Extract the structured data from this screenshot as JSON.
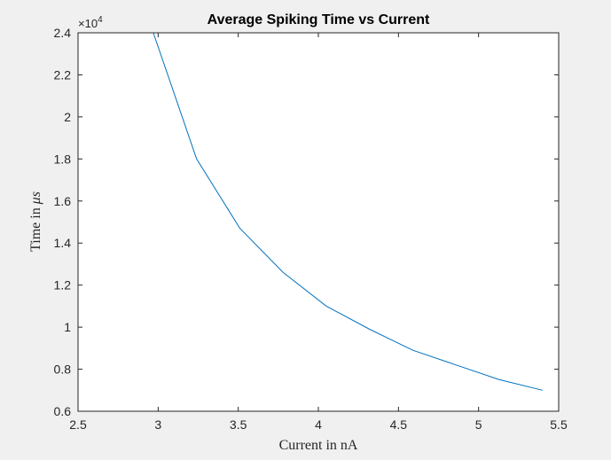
{
  "chart_data": {
    "type": "line",
    "title": "Average Spiking Time vs Current",
    "xlabel": "Current in nA",
    "ylabel_prefix": "Time in ",
    "ylabel_unit": "μs",
    "y_exponent_base": "×10",
    "y_exponent_power": "4",
    "xlim": [
      2.5,
      5.5
    ],
    "ylim": [
      0.6,
      2.4
    ],
    "x_ticks": [
      2.5,
      3,
      3.5,
      4,
      4.5,
      5,
      5.5
    ],
    "x_tick_labels": [
      "2.5",
      "3",
      "3.5",
      "4",
      "4.5",
      "5",
      "5.5"
    ],
    "y_ticks": [
      0.6,
      0.8,
      1,
      1.2,
      1.4,
      1.6,
      1.8,
      2,
      2.2,
      2.4
    ],
    "y_tick_labels": [
      "0.6",
      "0.8",
      "1",
      "1.2",
      "1.4",
      "1.6",
      "1.8",
      "2",
      "2.2",
      "2.4"
    ],
    "grid": false,
    "line_color": "#0072bd",
    "series": [
      {
        "x": [
          2.97,
          3.24,
          3.51,
          3.78,
          4.05,
          4.32,
          4.59,
          4.86,
          5.13,
          5.4
        ],
        "y": [
          2.4,
          1.8,
          1.47,
          1.26,
          1.1,
          0.99,
          0.89,
          0.82,
          0.75,
          0.7
        ]
      }
    ]
  }
}
